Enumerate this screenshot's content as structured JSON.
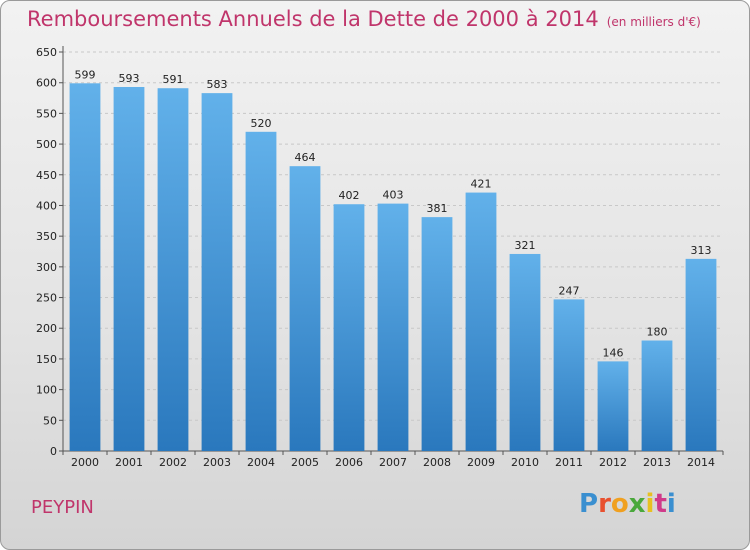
{
  "header": {
    "title": "Remboursements Annuels de la Dette de 2000 à 2014",
    "unit": "(en milliers d'€)"
  },
  "footer": {
    "city": "PEYPIN",
    "logo_text": "Proxiti"
  },
  "colors": {
    "title": "#c0356b",
    "bar_top": "#62b1ea",
    "bar_bottom": "#2a78bd"
  },
  "chart_data": {
    "type": "bar",
    "title": "Remboursements Annuels de la Dette de 2000 à 2014",
    "xlabel": "",
    "ylabel": "",
    "categories": [
      "2000",
      "2001",
      "2002",
      "2003",
      "2004",
      "2005",
      "2006",
      "2007",
      "2008",
      "2009",
      "2010",
      "2011",
      "2012",
      "2013",
      "2014"
    ],
    "values": [
      599,
      593,
      591,
      583,
      520,
      464,
      402,
      403,
      381,
      421,
      321,
      247,
      146,
      180,
      313
    ],
    "ylim": [
      0,
      650
    ],
    "yticks": [
      0,
      50,
      100,
      150,
      200,
      250,
      300,
      350,
      400,
      450,
      500,
      550,
      600,
      650
    ],
    "grid": true,
    "legend": "none"
  }
}
